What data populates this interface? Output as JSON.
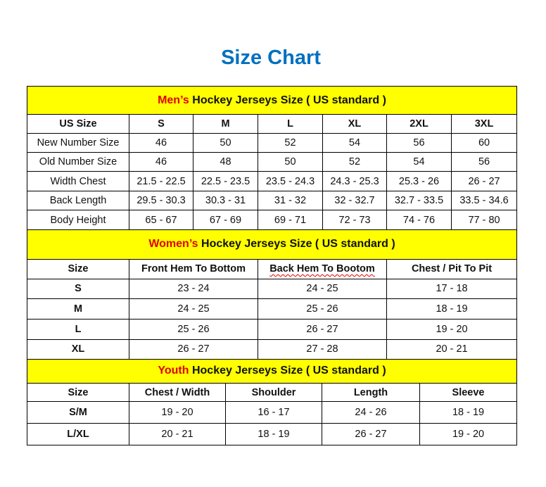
{
  "title": "Size Chart",
  "colors": {
    "title": "#0070c0",
    "header_bg": "#ffff00",
    "accent": "#e00000"
  },
  "mens": {
    "header_accent": "Men’s",
    "header_rest": " Hockey Jerseys Size ( US standard )",
    "columns": [
      "US Size",
      "S",
      "M",
      "L",
      "XL",
      "2XL",
      "3XL"
    ],
    "rows": [
      [
        "New Number Size",
        "46",
        "50",
        "52",
        "54",
        "56",
        "60"
      ],
      [
        "Old Number Size",
        "46",
        "48",
        "50",
        "52",
        "54",
        "56"
      ],
      [
        "Width Chest",
        "21.5 - 22.5",
        "22.5 - 23.5",
        "23.5 - 24.3",
        "24.3 - 25.3",
        "25.3 - 26",
        "26 - 27"
      ],
      [
        "Back Length",
        "29.5 - 30.3",
        "30.3 - 31",
        "31 - 32",
        "32 - 32.7",
        "32.7 - 33.5",
        "33.5 - 34.6"
      ],
      [
        "Body Height",
        "65 - 67",
        "67 - 69",
        "69 - 71",
        "72 - 73",
        "74 - 76",
        "77 - 80"
      ]
    ]
  },
  "womens": {
    "header_accent": "Women’s",
    "header_rest": " Hockey Jerseys Size ( US standard )",
    "columns": [
      "Size",
      "Front Hem To Bottom",
      "Back Hem To Bootom",
      "Chest / Pit To Pit"
    ],
    "rows": [
      [
        "S",
        "23 - 24",
        "24 - 25",
        "17 - 18"
      ],
      [
        "M",
        "24 - 25",
        "25 - 26",
        "18 - 19"
      ],
      [
        "L",
        "25 - 26",
        "26 - 27",
        "19 - 20"
      ],
      [
        "XL",
        "26 - 27",
        "27 - 28",
        "20 - 21"
      ]
    ]
  },
  "youth": {
    "header_accent": "Youth",
    "header_rest": " Hockey Jerseys Size ( US standard )",
    "columns": [
      "Size",
      "Chest / Width",
      "Shoulder",
      "Length",
      "Sleeve"
    ],
    "rows": [
      [
        "S/M",
        "19 - 20",
        "16 - 17",
        "24 - 26",
        "18 - 19"
      ],
      [
        "L/XL",
        "20 - 21",
        "18 - 19",
        "26 - 27",
        "19 - 20"
      ]
    ]
  }
}
